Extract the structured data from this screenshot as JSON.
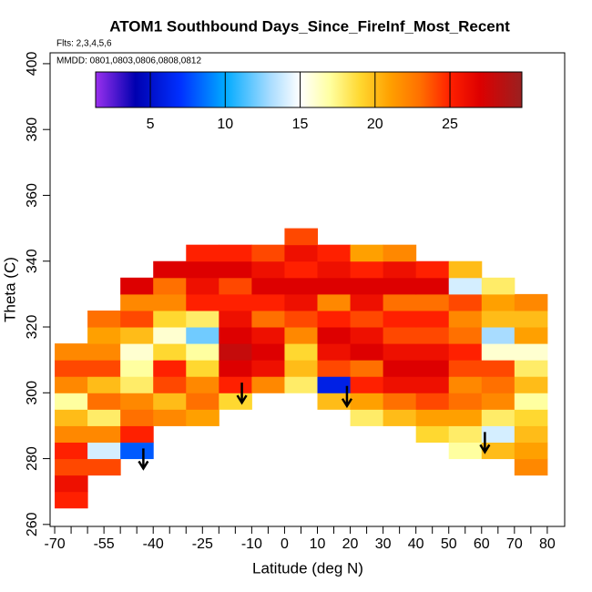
{
  "chart_data": {
    "type": "heatmap",
    "title": "ATOM1 Southbound Days_Since_FireInf_Most_Recent",
    "subtitle": "Flts: 2,3,4,5,6",
    "annotation": "MMDD: 0801,0803,0806,0808,0812",
    "xlabel": "Latitude (deg N)",
    "ylabel": "Theta (C)",
    "xlim": [
      -71.4,
      85.3
    ],
    "ylim": [
      259.4,
      403.3
    ],
    "xticks": [
      -70,
      -55,
      -40,
      -25,
      -10,
      0,
      10,
      20,
      30,
      40,
      50,
      60,
      70,
      80
    ],
    "xminor_ticks": [
      -65,
      -60,
      -50,
      -45,
      -35,
      -30,
      -20,
      -15,
      -5,
      5,
      15,
      25,
      35,
      45,
      55,
      65,
      75
    ],
    "yticks": [
      260,
      280,
      300,
      320,
      340,
      360,
      380,
      400
    ],
    "zlim": [
      1.35,
      29.8
    ],
    "colorbar_ticks": [
      5,
      10,
      15,
      20,
      25
    ],
    "colorscale": [
      [
        1.35,
        "#9a30ee"
      ],
      [
        4,
        "#0000b0"
      ],
      [
        7,
        "#0030ff"
      ],
      [
        10,
        "#00aaff"
      ],
      [
        13,
        "#a8dcff"
      ],
      [
        15,
        "#ffffff"
      ],
      [
        17,
        "#ffffa0"
      ],
      [
        19,
        "#ffd830"
      ],
      [
        21,
        "#ffa000"
      ],
      [
        23,
        "#ff7000"
      ],
      [
        25,
        "#ff2000"
      ],
      [
        27,
        "#dd0000"
      ],
      [
        29.8,
        "#9a2020"
      ]
    ],
    "x": [
      -65,
      -55,
      -45,
      -35,
      -25,
      -15,
      -5,
      5,
      15,
      25,
      35,
      45,
      55,
      65,
      75
    ],
    "y": [
      267.5,
      272.5,
      277.5,
      282.5,
      287.5,
      292.5,
      297.5,
      302.5,
      307.5,
      312.5,
      317.5,
      322.5,
      327.5,
      332.5,
      337.5,
      342.5,
      347.5
    ],
    "z": [
      [
        25,
        null,
        null,
        null,
        null,
        null,
        null,
        null,
        null,
        null,
        null,
        null,
        null,
        null,
        null
      ],
      [
        26,
        null,
        null,
        null,
        null,
        null,
        null,
        null,
        null,
        null,
        null,
        null,
        null,
        null,
        null
      ],
      [
        24,
        24,
        null,
        null,
        null,
        null,
        null,
        null,
        null,
        null,
        null,
        null,
        null,
        null,
        22
      ],
      [
        25,
        14,
        8,
        null,
        null,
        null,
        null,
        null,
        null,
        null,
        null,
        null,
        17,
        20,
        21
      ],
      [
        22,
        22,
        25,
        null,
        null,
        null,
        null,
        null,
        null,
        null,
        null,
        19,
        18,
        14,
        20
      ],
      [
        20,
        18,
        23,
        22,
        21,
        null,
        null,
        null,
        null,
        18,
        20,
        21,
        21,
        18,
        19
      ],
      [
        17,
        23,
        22,
        20,
        23,
        19,
        null,
        null,
        20,
        21,
        23,
        24,
        23,
        22,
        17
      ],
      [
        22,
        20,
        18,
        24,
        22,
        25,
        22,
        18,
        6,
        25,
        26,
        26,
        22,
        23,
        20
      ],
      [
        24,
        24,
        17,
        25,
        19,
        27,
        26,
        20,
        24,
        23,
        27,
        27,
        24,
        24,
        18
      ],
      [
        22,
        22,
        16,
        19,
        17,
        28,
        27,
        19,
        26,
        27,
        26,
        26,
        25,
        16,
        16
      ],
      [
        null,
        21,
        20,
        16,
        12,
        27,
        26,
        22,
        27,
        26,
        24,
        24,
        23,
        13,
        21
      ],
      [
        null,
        23,
        24,
        19,
        18,
        26,
        23,
        24,
        25,
        24,
        25,
        25,
        22,
        20,
        20
      ],
      [
        null,
        null,
        22,
        22,
        25,
        25,
        25,
        26,
        22,
        26,
        23,
        23,
        24,
        21,
        22
      ],
      [
        null,
        null,
        27,
        23,
        26,
        24,
        27,
        27,
        27,
        27,
        27,
        27,
        14,
        18,
        null
      ],
      [
        null,
        null,
        null,
        27,
        27,
        27,
        26,
        25,
        26,
        25,
        26,
        25,
        20,
        null,
        null
      ],
      [
        null,
        null,
        null,
        null,
        25,
        25,
        24,
        26,
        25,
        21,
        22,
        null,
        null,
        null,
        null
      ],
      [
        null,
        null,
        null,
        null,
        null,
        null,
        null,
        24,
        null,
        null,
        null,
        null,
        null,
        null,
        null
      ]
    ],
    "arrows": {
      "x": [
        -43,
        -13,
        19,
        61
      ],
      "y": [
        277,
        297,
        296,
        282
      ]
    }
  }
}
